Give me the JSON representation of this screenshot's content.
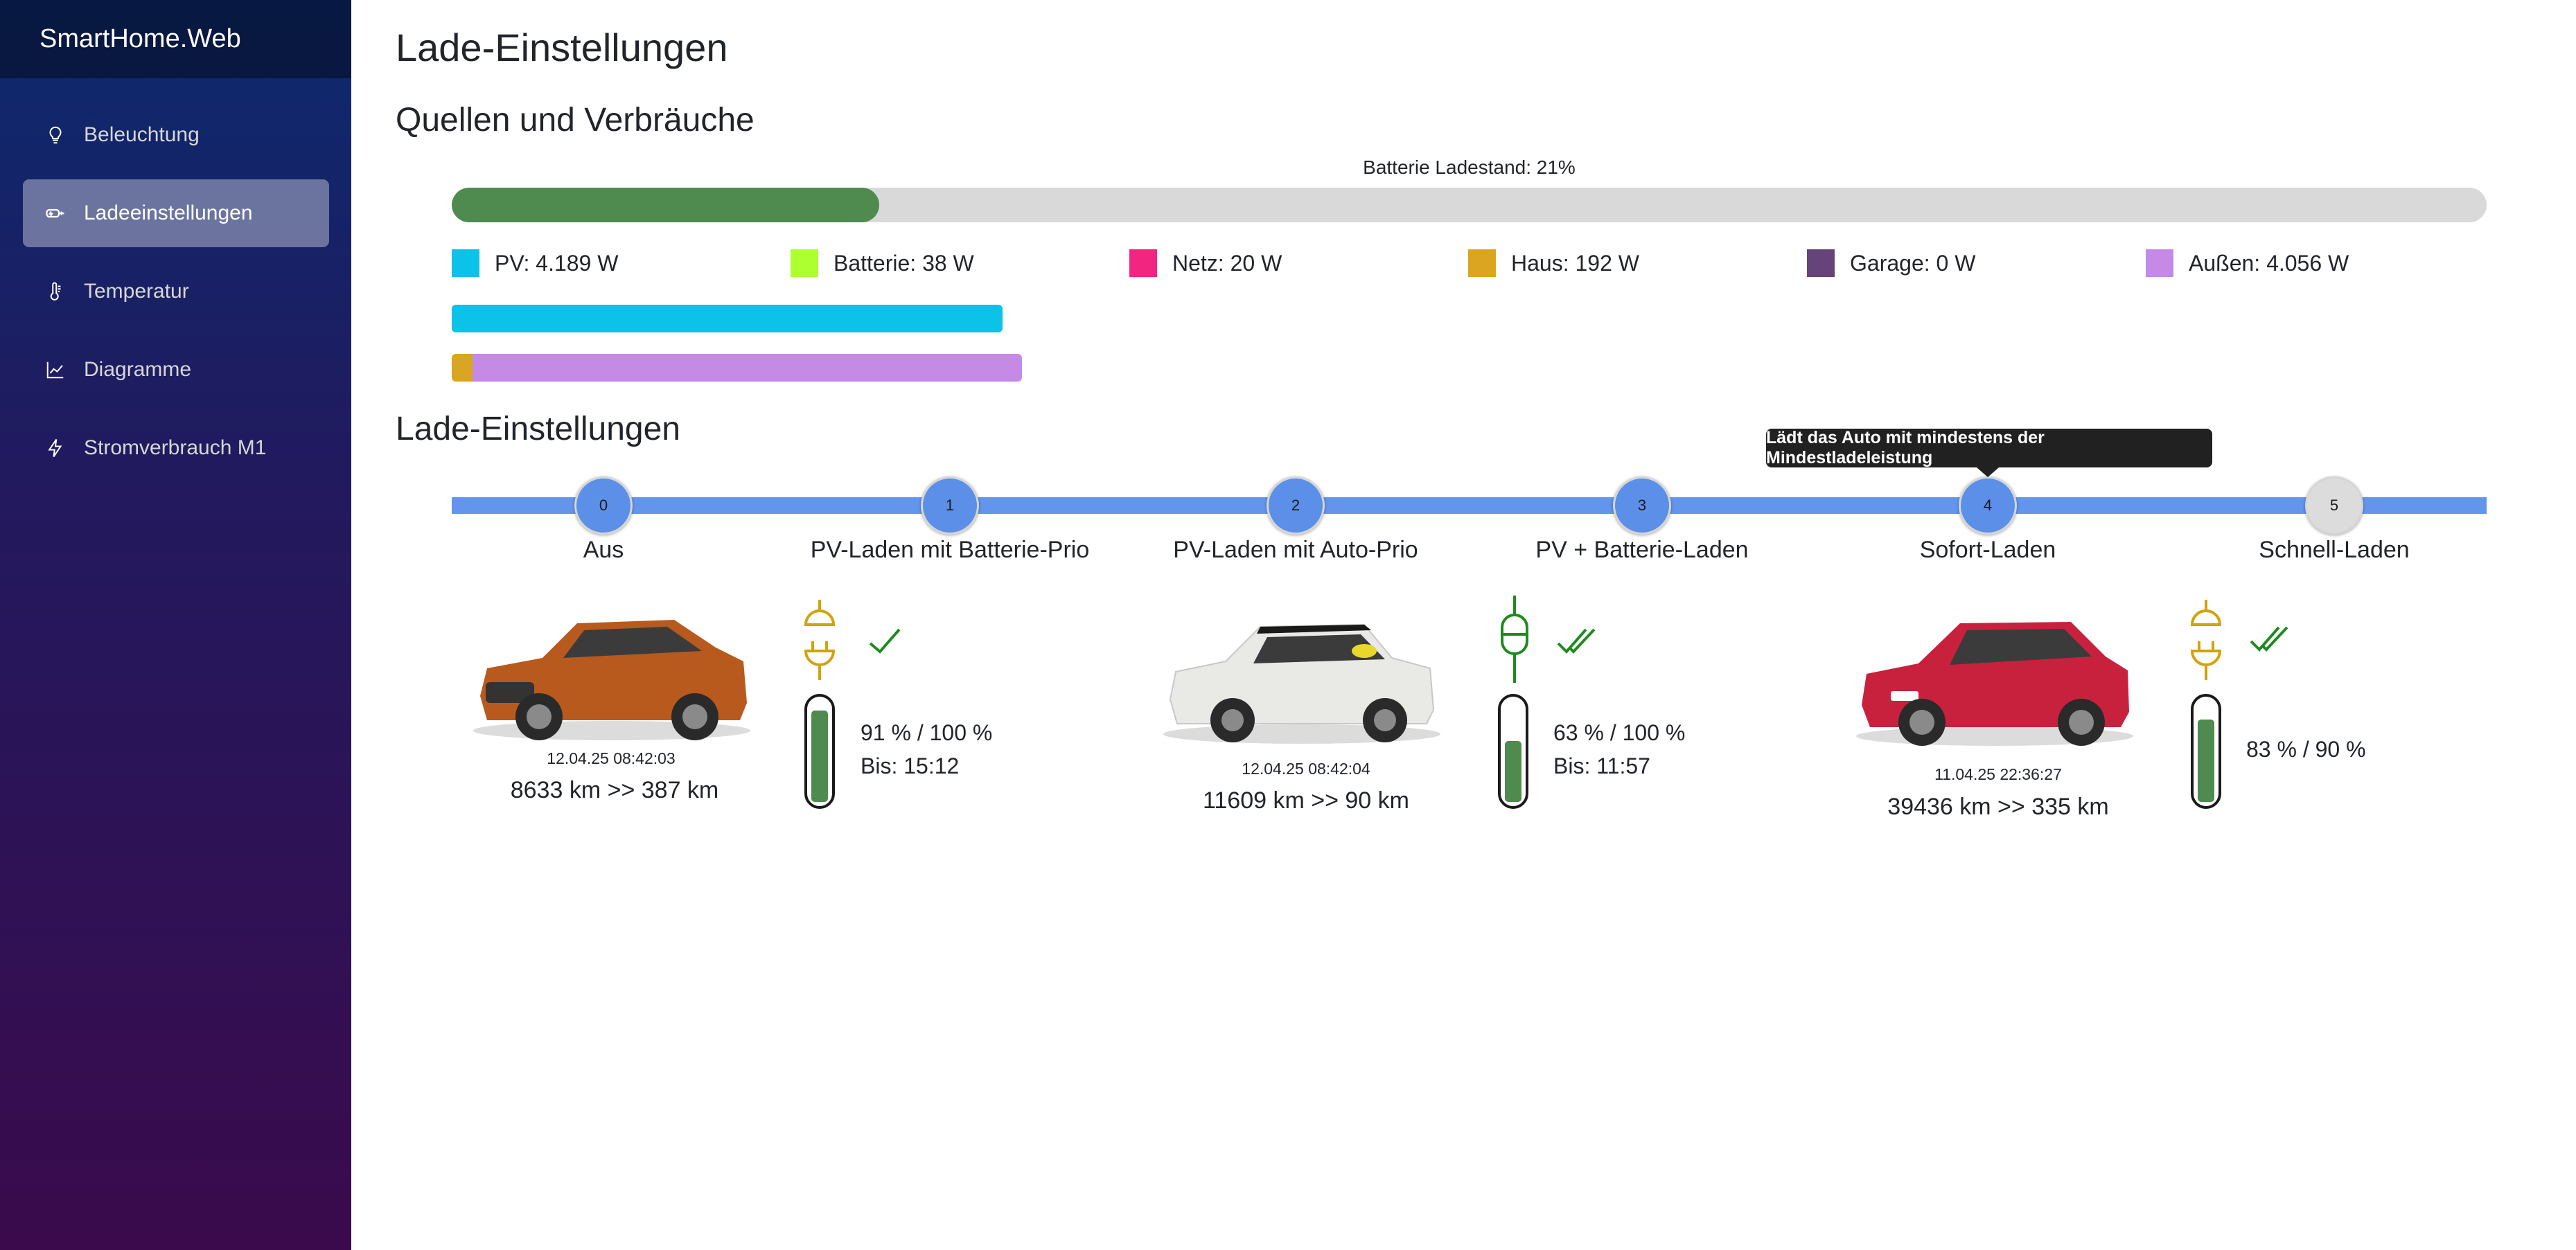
{
  "app": {
    "title": "SmartHome.Web"
  },
  "sidebar": {
    "items": [
      {
        "label": "Beleuchtung",
        "icon": "lightbulb-icon",
        "active": false
      },
      {
        "label": "Ladeeinstellungen",
        "icon": "ev-charging-icon",
        "active": true
      },
      {
        "label": "Temperatur",
        "icon": "thermometer-icon",
        "active": false
      },
      {
        "label": "Diagramme",
        "icon": "chart-line-icon",
        "active": false
      },
      {
        "label": "Stromverbrauch M1",
        "icon": "lightning-icon",
        "active": false
      }
    ]
  },
  "page": {
    "title": "Lade-Einstellungen",
    "sources_title": "Quellen und Verbräuche",
    "settings_title": "Lade-Einstellungen"
  },
  "battery": {
    "label": "Batterie Ladestand: 21%",
    "percent": 21,
    "color": "#4f8a4e"
  },
  "legend": [
    {
      "label": "PV: 4.189 W",
      "color": "#0dc2e8"
    },
    {
      "label": "Batterie: 38 W",
      "color": "#adff2f"
    },
    {
      "label": "Netz: 20 W",
      "color": "#f02680"
    },
    {
      "label": "Haus: 192 W",
      "color": "#daa520"
    },
    {
      "label": "Garage: 0 W",
      "color": "#66447a"
    },
    {
      "label": "Außen: 4.056 W",
      "color": "#c58ae5"
    }
  ],
  "charge_modes": {
    "selected": 4,
    "steps": [
      {
        "number": "0",
        "label": "Aus"
      },
      {
        "number": "1",
        "label": "PV-Laden mit Batterie-Prio"
      },
      {
        "number": "2",
        "label": "PV-Laden mit Auto-Prio"
      },
      {
        "number": "3",
        "label": "PV + Batterie-Laden"
      },
      {
        "number": "4",
        "label": "Sofort-Laden"
      },
      {
        "number": "5",
        "label": "Schnell-Laden"
      }
    ],
    "tooltip": "Lädt das Auto mit mindestens der Mindestladeleistung"
  },
  "cars": [
    {
      "date": "12.04.25 08:42:03",
      "km": "8633 km >> 387 km",
      "soc": "91 % / 100 %",
      "until": "Bis: 15:12",
      "soc_percent": 91,
      "plug": "plug-disconnected-icon",
      "check": "check-icon",
      "body_color": "#b85a1e"
    },
    {
      "date": "12.04.25 08:42:04",
      "km": "11609 km >> 90 km",
      "soc": "63 % / 100 %",
      "until": "Bis: 11:57",
      "soc_percent": 63,
      "plug": "plug-connected-icon",
      "check": "double-check-icon",
      "body_color": "#e9e9e6"
    },
    {
      "date": "11.04.25 22:36:27",
      "km": "39436 km >> 335 km",
      "soc": "83 % / 90 %",
      "until": "",
      "soc_percent": 83,
      "plug": "plug-disconnected-icon",
      "check": "double-check-icon",
      "body_color": "#c8213e"
    }
  ]
}
